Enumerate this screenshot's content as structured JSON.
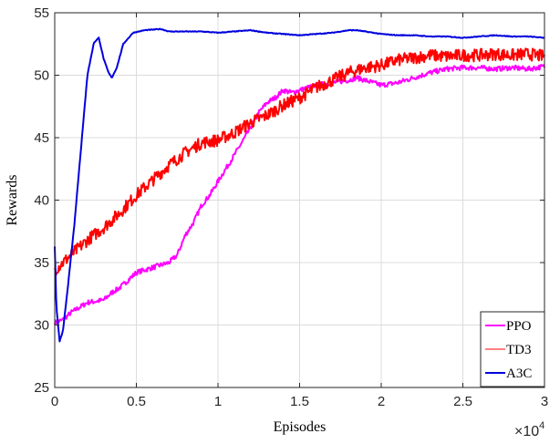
{
  "chart_data": {
    "type": "line",
    "title": "",
    "xlabel": "Episodes",
    "ylabel": "Rewards",
    "x_scale_label": {
      "base": "×10",
      "exponent": "4"
    },
    "xlim": [
      0,
      30000
    ],
    "ylim": [
      25,
      55
    ],
    "x_ticks": [
      0,
      5000,
      10000,
      15000,
      20000,
      25000,
      30000
    ],
    "x_tick_labels": [
      "0",
      "0.5",
      "1",
      "1.5",
      "2",
      "2.5",
      "3"
    ],
    "y_ticks": [
      25,
      30,
      35,
      40,
      45,
      50,
      55
    ],
    "y_tick_labels": [
      "25",
      "30",
      "35",
      "40",
      "45",
      "50",
      "55"
    ],
    "grid": true,
    "legend_position": "bottom-right",
    "series": [
      {
        "name": "PPO",
        "color": "#ff00ff",
        "noise": 0.2,
        "x": [
          0,
          500,
          1000,
          2000,
          3000,
          3500,
          4000,
          5000,
          6000,
          7000,
          7500,
          8000,
          8500,
          9000,
          9500,
          10000,
          11000,
          12000,
          12500,
          13000,
          13500,
          14000,
          14500,
          15000,
          16000,
          17000,
          18000,
          18500,
          19000,
          20000,
          21000,
          22000,
          23000,
          24000,
          25000,
          26000,
          27000,
          28000,
          29000,
          30000
        ],
        "y": [
          30.2,
          30.4,
          31.0,
          31.8,
          32.0,
          32.6,
          33.0,
          34.2,
          34.6,
          35.0,
          35.6,
          37.2,
          38.2,
          39.6,
          40.4,
          41.5,
          43.6,
          45.8,
          47.0,
          47.8,
          48.2,
          48.8,
          48.6,
          48.8,
          49.2,
          49.4,
          49.6,
          49.8,
          49.6,
          49.2,
          49.4,
          49.8,
          50.2,
          50.5,
          50.6,
          50.6,
          50.5,
          50.6,
          50.5,
          50.7
        ]
      },
      {
        "name": "TD3",
        "color": "#ff0000",
        "noise": 0.5,
        "x": [
          0,
          1000,
          2000,
          3000,
          4000,
          5000,
          6000,
          7000,
          8000,
          9000,
          10000,
          11000,
          12000,
          13000,
          14000,
          15000,
          16000,
          17000,
          18000,
          19000,
          20000,
          21000,
          22000,
          23000,
          24000,
          25000,
          26000,
          27000,
          28000,
          29000,
          30000
        ],
        "y": [
          34.4,
          35.6,
          36.8,
          37.8,
          39.0,
          40.4,
          41.6,
          42.8,
          43.8,
          44.6,
          44.8,
          45.4,
          46.2,
          46.8,
          47.6,
          48.2,
          49.0,
          49.6,
          50.2,
          50.6,
          50.8,
          51.2,
          51.4,
          51.6,
          51.5,
          51.6,
          51.6,
          51.7,
          51.6,
          51.7,
          51.5
        ]
      },
      {
        "name": "A3C",
        "color": "#0000dd",
        "noise": 0.03,
        "x": [
          0,
          100,
          300,
          500,
          800,
          1200,
          1600,
          2000,
          2400,
          2700,
          3000,
          3300,
          3500,
          3800,
          4200,
          4800,
          5500,
          6500,
          7000,
          8000,
          9000,
          10000,
          11000,
          12000,
          13000,
          14000,
          15000,
          16000,
          17000,
          18000,
          18500,
          19000,
          20000,
          21000,
          22000,
          23000,
          24000,
          25000,
          26000,
          27000,
          28000,
          29000,
          30000
        ],
        "y": [
          36.3,
          31.5,
          28.7,
          29.5,
          33.0,
          38.0,
          44.0,
          50.0,
          52.6,
          53.0,
          51.3,
          50.2,
          49.8,
          50.6,
          52.5,
          53.4,
          53.6,
          53.7,
          53.5,
          53.5,
          53.5,
          53.4,
          53.5,
          53.6,
          53.4,
          53.3,
          53.2,
          53.3,
          53.4,
          53.6,
          53.6,
          53.5,
          53.3,
          53.2,
          53.2,
          53.1,
          53.1,
          53.0,
          53.1,
          53.2,
          53.1,
          53.1,
          53.0
        ]
      }
    ]
  }
}
